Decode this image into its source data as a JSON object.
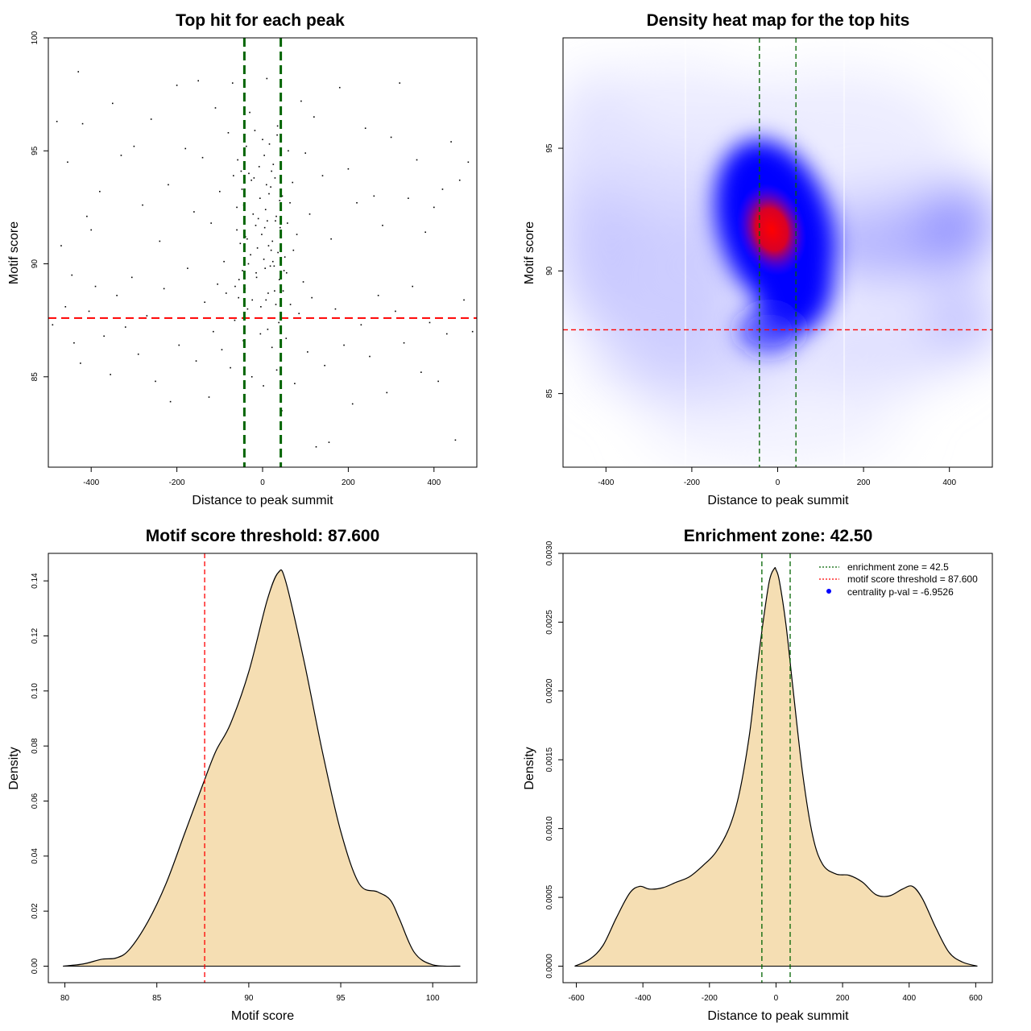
{
  "chart_data": [
    {
      "type": "scatter",
      "title": "Top hit for each peak",
      "xlabel": "Distance to peak summit",
      "ylabel": "Motif score",
      "xlim": [
        -500,
        500
      ],
      "ylim": [
        81,
        100
      ],
      "xticks": [
        -400,
        -200,
        0,
        200,
        400
      ],
      "yticks": [
        85,
        90,
        95,
        100
      ],
      "threshold": 87.6,
      "enrichment_zone": 42.5,
      "points": [
        [
          -480,
          96.3
        ],
        [
          -455,
          94.5
        ],
        [
          -430,
          98.5
        ],
        [
          -420,
          96.2
        ],
        [
          -410,
          92.1
        ],
        [
          -470,
          90.8
        ],
        [
          -445,
          89.5
        ],
        [
          -400,
          91.5
        ],
        [
          -380,
          93.2
        ],
        [
          -350,
          97.1
        ],
        [
          -330,
          94.8
        ],
        [
          -300,
          95.2
        ],
        [
          -280,
          92.6
        ],
        [
          -260,
          96.4
        ],
        [
          -240,
          91.0
        ],
        [
          -220,
          93.5
        ],
        [
          -200,
          97.9
        ],
        [
          -180,
          95.1
        ],
        [
          -160,
          92.3
        ],
        [
          -150,
          98.1
        ],
        [
          -140,
          94.7
        ],
        [
          -120,
          91.8
        ],
        [
          -110,
          96.9
        ],
        [
          -100,
          93.2
        ],
        [
          -90,
          90.1
        ],
        [
          -80,
          95.8
        ],
        [
          -70,
          98.0
        ],
        [
          -60,
          92.5
        ],
        [
          -50,
          94.1
        ],
        [
          -40,
          91.2
        ],
        [
          -30,
          96.7
        ],
        [
          -20,
          93.8
        ],
        [
          -10,
          92.0
        ],
        [
          0,
          95.5
        ],
        [
          5,
          91.6
        ],
        [
          10,
          98.2
        ],
        [
          15,
          93.1
        ],
        [
          20,
          90.6
        ],
        [
          25,
          94.4
        ],
        [
          30,
          91.9
        ],
        [
          35,
          96.1
        ],
        [
          40,
          92.8
        ],
        [
          50,
          89.7
        ],
        [
          60,
          95.0
        ],
        [
          70,
          93.6
        ],
        [
          80,
          91.3
        ],
        [
          90,
          97.2
        ],
        [
          100,
          94.9
        ],
        [
          110,
          92.2
        ],
        [
          120,
          96.5
        ],
        [
          140,
          93.9
        ],
        [
          160,
          91.1
        ],
        [
          180,
          97.8
        ],
        [
          200,
          94.2
        ],
        [
          220,
          92.7
        ],
        [
          240,
          96.0
        ],
        [
          260,
          93.0
        ],
        [
          280,
          91.7
        ],
        [
          300,
          95.6
        ],
        [
          320,
          98.0
        ],
        [
          340,
          92.9
        ],
        [
          360,
          94.6
        ],
        [
          380,
          91.4
        ],
        [
          400,
          92.5
        ],
        [
          420,
          93.3
        ],
        [
          440,
          95.4
        ],
        [
          460,
          93.7
        ],
        [
          480,
          94.5
        ],
        [
          -490,
          87.3
        ],
        [
          -460,
          88.1
        ],
        [
          -440,
          86.5
        ],
        [
          -425,
          85.6
        ],
        [
          -405,
          87.9
        ],
        [
          -390,
          89.0
        ],
        [
          -370,
          86.8
        ],
        [
          -355,
          85.1
        ],
        [
          -340,
          88.6
        ],
        [
          -320,
          87.2
        ],
        [
          -305,
          89.4
        ],
        [
          -290,
          86.0
        ],
        [
          -270,
          87.7
        ],
        [
          -250,
          84.8
        ],
        [
          -230,
          88.9
        ],
        [
          -215,
          83.9
        ],
        [
          -195,
          86.4
        ],
        [
          -175,
          89.8
        ],
        [
          -155,
          85.7
        ],
        [
          -135,
          88.3
        ],
        [
          -125,
          84.1
        ],
        [
          -115,
          87.0
        ],
        [
          -105,
          89.1
        ],
        [
          -95,
          86.2
        ],
        [
          -85,
          88.7
        ],
        [
          -75,
          85.4
        ],
        [
          -65,
          87.5
        ],
        [
          -55,
          89.3
        ],
        [
          -45,
          86.6
        ],
        [
          -35,
          88.0
        ],
        [
          -25,
          85.0
        ],
        [
          -15,
          89.6
        ],
        [
          -5,
          86.9
        ],
        [
          2,
          84.6
        ],
        [
          8,
          88.4
        ],
        [
          12,
          87.1
        ],
        [
          18,
          89.9
        ],
        [
          22,
          86.3
        ],
        [
          28,
          88.8
        ],
        [
          33,
          85.3
        ],
        [
          38,
          87.4
        ],
        [
          45,
          83.5
        ],
        [
          55,
          86.7
        ],
        [
          65,
          88.2
        ],
        [
          75,
          84.7
        ],
        [
          85,
          87.8
        ],
        [
          95,
          89.2
        ],
        [
          105,
          86.1
        ],
        [
          115,
          88.5
        ],
        [
          125,
          81.9
        ],
        [
          135,
          87.6
        ],
        [
          145,
          85.5
        ],
        [
          155,
          82.1
        ],
        [
          170,
          88.0
        ],
        [
          190,
          86.4
        ],
        [
          210,
          83.8
        ],
        [
          230,
          87.3
        ],
        [
          250,
          85.9
        ],
        [
          270,
          88.6
        ],
        [
          290,
          84.3
        ],
        [
          310,
          87.9
        ],
        [
          330,
          86.5
        ],
        [
          350,
          89.0
        ],
        [
          370,
          85.2
        ],
        [
          390,
          87.4
        ],
        [
          410,
          84.8
        ],
        [
          430,
          86.9
        ],
        [
          450,
          82.2
        ],
        [
          470,
          88.4
        ],
        [
          490,
          87.0
        ],
        [
          -60,
          91.5
        ],
        [
          -52,
          90.9
        ],
        [
          -44,
          92.6
        ],
        [
          -36,
          91.1
        ],
        [
          -28,
          90.4
        ],
        [
          -22,
          92.2
        ],
        [
          -16,
          91.7
        ],
        [
          -12,
          90.7
        ],
        [
          -6,
          92.9
        ],
        [
          -2,
          91.3
        ],
        [
          3,
          90.2
        ],
        [
          7,
          92.4
        ],
        [
          11,
          91.9
        ],
        [
          14,
          90.8
        ],
        [
          19,
          93.4
        ],
        [
          23,
          91.0
        ],
        [
          27,
          89.9
        ],
        [
          32,
          92.1
        ],
        [
          36,
          90.5
        ],
        [
          41,
          91.6
        ],
        [
          46,
          93.0
        ],
        [
          52,
          90.3
        ],
        [
          58,
          91.8
        ],
        [
          64,
          92.7
        ],
        [
          72,
          90.6
        ],
        [
          -68,
          93.9
        ],
        [
          -58,
          94.6
        ],
        [
          -48,
          93.3
        ],
        [
          -38,
          95.2
        ],
        [
          -32,
          94.0
        ],
        [
          -26,
          93.7
        ],
        [
          -18,
          95.9
        ],
        [
          -8,
          94.3
        ],
        [
          4,
          94.8
        ],
        [
          9,
          93.5
        ],
        [
          16,
          95.3
        ],
        [
          21,
          94.1
        ],
        [
          29,
          93.8
        ],
        [
          34,
          95.7
        ],
        [
          43,
          94.4
        ],
        [
          -64,
          89.0
        ],
        [
          -56,
          88.5
        ],
        [
          -47,
          89.7
        ],
        [
          -41,
          88.9
        ],
        [
          -33,
          90.0
        ],
        [
          -24,
          88.4
        ],
        [
          -14,
          89.4
        ],
        [
          -4,
          88.1
        ],
        [
          6,
          89.8
        ],
        [
          13,
          88.7
        ],
        [
          24,
          90.1
        ],
        [
          31,
          88.2
        ],
        [
          39,
          89.3
        ],
        [
          48,
          88.8
        ],
        [
          56,
          89.6
        ]
      ]
    },
    {
      "type": "heatmap",
      "title": "Density heat map for the top hits",
      "xlabel": "Distance to peak summit",
      "ylabel": "Motif score",
      "xlim": [
        -500,
        500
      ],
      "ylim": [
        82,
        99.5
      ],
      "xticks": [
        -400,
        -200,
        0,
        200,
        400
      ],
      "yticks": [
        85,
        90,
        95
      ],
      "threshold": 87.6,
      "enrichment_zone": 42.5,
      "colors": [
        "#ffffff",
        "#0000ff",
        "#ff0000"
      ]
    },
    {
      "type": "area",
      "title": "Motif score threshold: 87.600",
      "xlabel": "Motif score",
      "ylabel": "Density",
      "xlim": [
        79.1,
        102.4
      ],
      "ylim": [
        -0.006,
        0.15
      ],
      "xticks": [
        80,
        85,
        90,
        95,
        100
      ],
      "yticks": [
        0.0,
        0.02,
        0.04,
        0.06,
        0.08,
        0.1,
        0.12,
        0.14
      ],
      "ytick_labels": [
        "0.00",
        "0.02",
        "0.04",
        "0.06",
        "0.08",
        "0.10",
        "0.12",
        "0.14"
      ],
      "threshold": 87.6,
      "fill": "#f5deb3",
      "x": [
        79.9,
        81,
        82,
        82.8,
        83.5,
        84.5,
        85.5,
        86.5,
        87.5,
        88.2,
        89,
        90,
        91,
        91.6,
        92,
        93,
        94,
        95,
        96,
        97,
        97.7,
        98.2,
        99,
        100,
        101.5
      ],
      "y": [
        0.0,
        0.0008,
        0.0025,
        0.003,
        0.006,
        0.016,
        0.03,
        0.048,
        0.066,
        0.078,
        0.088,
        0.107,
        0.133,
        0.143,
        0.14,
        0.111,
        0.078,
        0.049,
        0.03,
        0.027,
        0.024,
        0.017,
        0.005,
        0.0005,
        0.0
      ]
    },
    {
      "type": "area",
      "title": "Enrichment zone: 42.50",
      "xlabel": "Distance to peak summit",
      "ylabel": "Density",
      "xlim": [
        -640,
        650
      ],
      "ylim": [
        -0.00012,
        0.003
      ],
      "xticks": [
        -600,
        -400,
        -200,
        0,
        200,
        400,
        600
      ],
      "yticks": [
        0.0,
        0.0005,
        0.001,
        0.0015,
        0.002,
        0.0025,
        0.003
      ],
      "ytick_labels": [
        "0.0000",
        "0.0005",
        "0.0010",
        "0.0015",
        "0.0020",
        "0.0025",
        "0.0030"
      ],
      "enrichment_zone": 42.5,
      "fill": "#f5deb3",
      "x": [
        -605,
        -560,
        -520,
        -480,
        -440,
        -410,
        -380,
        -340,
        -300,
        -260,
        -220,
        -180,
        -140,
        -110,
        -80,
        -60,
        -40,
        -20,
        -5,
        0,
        10,
        30,
        50,
        80,
        110,
        140,
        180,
        220,
        260,
        300,
        340,
        380,
        410,
        440,
        480,
        520,
        560,
        605
      ],
      "y": [
        0.0,
        5e-05,
        0.00015,
        0.00035,
        0.00053,
        0.00058,
        0.00056,
        0.00057,
        0.00061,
        0.00065,
        0.00073,
        0.00083,
        0.00101,
        0.00126,
        0.00168,
        0.00209,
        0.00248,
        0.0028,
        0.00289,
        0.00288,
        0.0028,
        0.00248,
        0.00204,
        0.0014,
        0.00095,
        0.00074,
        0.00067,
        0.00066,
        0.00061,
        0.00052,
        0.00051,
        0.00056,
        0.00058,
        0.00049,
        0.00028,
        0.0001,
        3e-05,
        0.0
      ]
    }
  ],
  "legend": {
    "zone_label": "enrichment zone = 42.5",
    "threshold_label": "motif score threshold = 87.600",
    "pval_label": "centrality p-val = -6.9526"
  }
}
